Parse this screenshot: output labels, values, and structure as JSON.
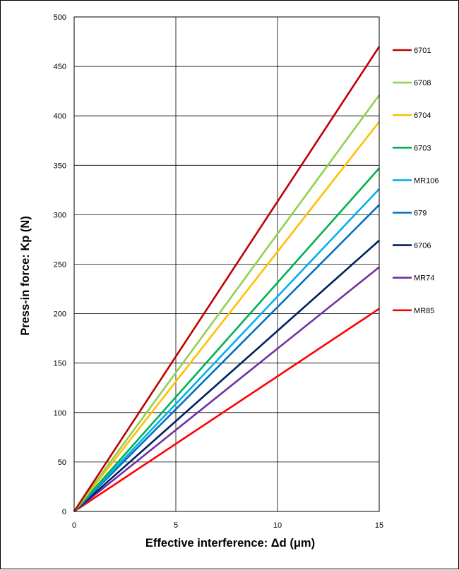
{
  "chart_data": {
    "type": "line",
    "title": "",
    "xlabel": "Effective interference: Δd (μm)",
    "ylabel": "Press-in force: Kp (N)",
    "xlim": [
      0,
      15
    ],
    "ylim": [
      0,
      500
    ],
    "x_ticks": [
      "0",
      "5",
      "10",
      "15"
    ],
    "y_ticks": [
      "0",
      "50",
      "100",
      "150",
      "200",
      "250",
      "300",
      "350",
      "400",
      "450",
      "500"
    ],
    "grid": true,
    "legend_position": "right",
    "series": [
      {
        "name": "6701",
        "color": "#C00000",
        "x": [
          0,
          15
        ],
        "y": [
          0,
          470
        ]
      },
      {
        "name": "6708",
        "color": "#92D050",
        "x": [
          0,
          15
        ],
        "y": [
          0,
          421
        ]
      },
      {
        "name": "6704",
        "color": "#FFC000",
        "x": [
          0,
          15
        ],
        "y": [
          0,
          394
        ]
      },
      {
        "name": "6703",
        "color": "#00B050",
        "x": [
          0,
          15
        ],
        "y": [
          0,
          347
        ]
      },
      {
        "name": "MR106",
        "color": "#00B0F0",
        "x": [
          0,
          15
        ],
        "y": [
          0,
          326
        ]
      },
      {
        "name": "679",
        "color": "#0070C0",
        "x": [
          0,
          15
        ],
        "y": [
          0,
          310
        ]
      },
      {
        "name": "6706",
        "color": "#002060",
        "x": [
          0,
          15
        ],
        "y": [
          0,
          274
        ]
      },
      {
        "name": "MR74",
        "color": "#7030A0",
        "x": [
          0,
          15
        ],
        "y": [
          0,
          247
        ]
      },
      {
        "name": "MR85",
        "color": "#FF0000",
        "x": [
          0,
          15
        ],
        "y": [
          0,
          205
        ]
      }
    ]
  }
}
